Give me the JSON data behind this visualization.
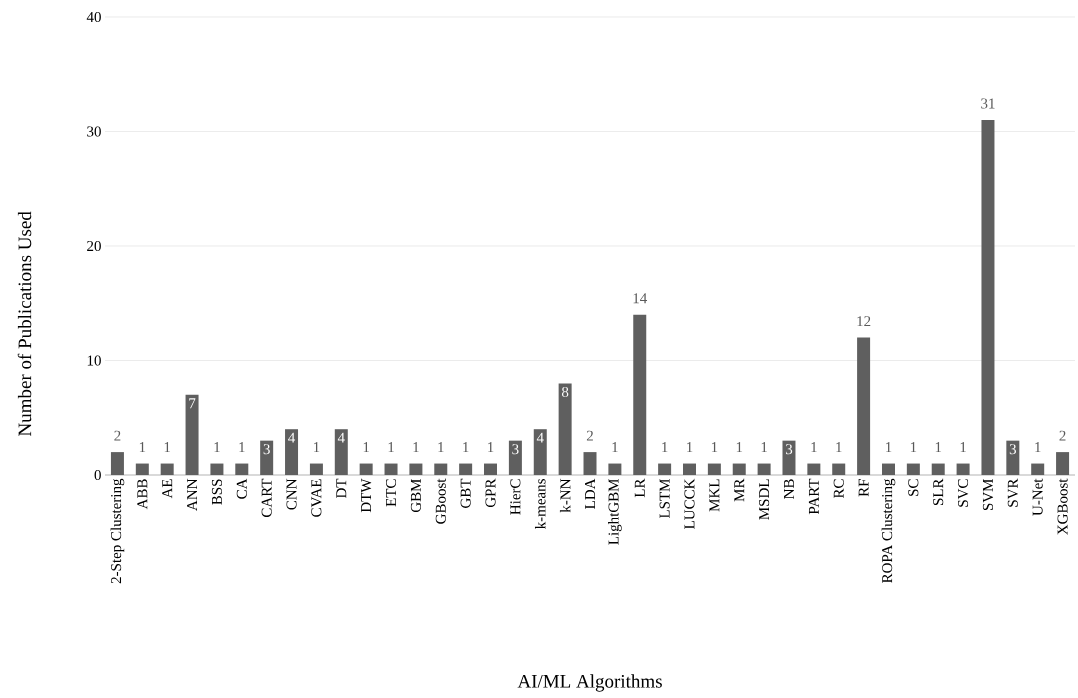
{
  "chart_data": {
    "type": "bar",
    "xlabel": "AI/ML Algorithms",
    "ylabel": "Number of Publications Used",
    "categories": [
      "2-Step Clustering",
      "ABB",
      "AE",
      "ANN",
      "BSS",
      "CA",
      "CART",
      "CNN",
      "CVAE",
      "DT",
      "DTW",
      "ETC",
      "GBM",
      "GBoost",
      "GBT",
      "GPR",
      "HierC",
      "k-means",
      "k-NN",
      "LDA",
      "LightGBM",
      "LR",
      "LSTM",
      "LUCCK",
      "MKL",
      "MR",
      "MSDL",
      "NB",
      "PART",
      "RC",
      "RF",
      "ROPA Clustering",
      "SC",
      "SLR",
      "SVC",
      "SVM",
      "SVR",
      "U-Net",
      "XGBoost"
    ],
    "values": [
      2,
      1,
      1,
      7,
      1,
      1,
      3,
      4,
      1,
      4,
      1,
      1,
      1,
      1,
      1,
      1,
      3,
      4,
      8,
      2,
      1,
      14,
      1,
      1,
      1,
      1,
      1,
      3,
      1,
      1,
      12,
      1,
      1,
      1,
      1,
      31,
      3,
      1,
      2
    ],
    "color": "#5f5f5f",
    "ylim": [
      0,
      40
    ],
    "yticks": [
      0,
      10,
      20,
      30,
      40
    ],
    "grid": "y",
    "data_labels": true
  }
}
